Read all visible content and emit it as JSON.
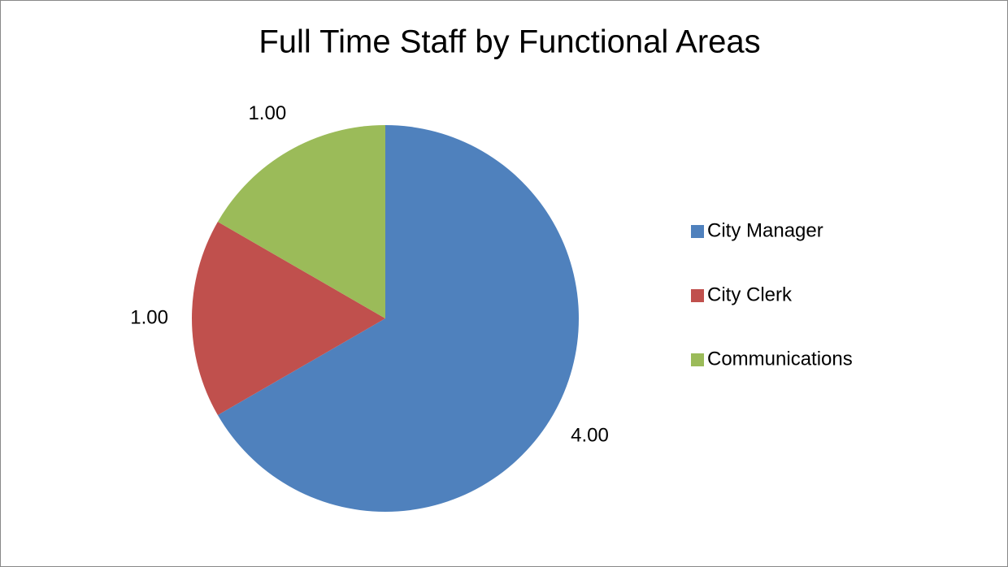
{
  "chart_data": {
    "type": "pie",
    "title": "Full Time Staff by Functional Areas",
    "categories": [
      "City Manager",
      "City Clerk",
      "Communications"
    ],
    "values": [
      4,
      1,
      1
    ],
    "value_labels": [
      "4.00",
      "1.00",
      "1.00"
    ],
    "colors": [
      "#4f81bd",
      "#c0504d",
      "#9bbb59"
    ],
    "legend": "right"
  }
}
